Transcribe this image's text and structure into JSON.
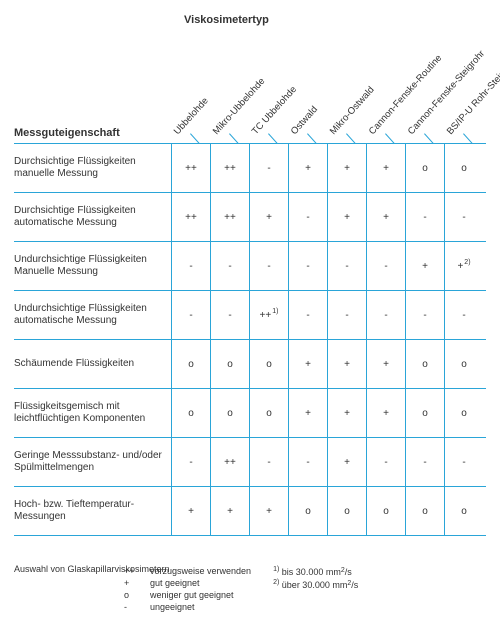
{
  "title": "Viskosimetertyp",
  "rowHeaderTitle": "Messguteigenschaft",
  "columns": [
    "Ubbelohde",
    "Mikro-Ubbelohde",
    "TC Ubbelohde",
    "Ostwald",
    "Mikro-Ostwald",
    "Cannon-Fenske-Routine",
    "Cannon-Fenske-Steigrohr",
    "BS/IP-U Rohr-Steigrohr"
  ],
  "rows": [
    {
      "label": "Durchsichtige Flüssigkeiten manuelle Messung",
      "cells": [
        "++",
        "++",
        "-",
        "+",
        "+",
        "+",
        "o",
        "o"
      ]
    },
    {
      "label": "Durchsichtige Flüssigkeiten automatische Messung",
      "cells": [
        "++",
        "++",
        "+",
        "-",
        "+",
        "+",
        "-",
        "-"
      ]
    },
    {
      "label": "Undurchsichtige Flüssigkeiten Manuelle Messung",
      "cells": [
        "-",
        "-",
        "-",
        "-",
        "-",
        "-",
        "+",
        {
          "v": "+",
          "sup": "2)"
        }
      ]
    },
    {
      "label": "Undurchsichtige Flüssigkeiten automatische Messung",
      "cells": [
        "-",
        "-",
        {
          "v": "++",
          "sup": "1)"
        },
        "-",
        "-",
        "-",
        "-",
        "-"
      ]
    },
    {
      "label": "Schäumende Flüssigkeiten",
      "cells": [
        "o",
        "o",
        "o",
        "+",
        "+",
        "+",
        "o",
        "o"
      ]
    },
    {
      "label": "Flüssigkeitsgemisch mit leichtflüchtigen Komponenten",
      "cells": [
        "o",
        "o",
        "o",
        "+",
        "+",
        "+",
        "o",
        "o"
      ]
    },
    {
      "label": "Geringe Messsubstanz- und/oder Spülmittelmengen",
      "cells": [
        "-",
        "++",
        "-",
        "-",
        "+",
        "-",
        "-",
        "-"
      ]
    },
    {
      "label": "Hoch- bzw. Tieftemperatur-Messungen",
      "cells": [
        "+",
        "+",
        "+",
        "o",
        "o",
        "o",
        "o",
        "o"
      ]
    }
  ],
  "footerTitle": "Auswahl von Glaskapillarviskosimetern",
  "legend": [
    {
      "sym": "++",
      "text": "vorzugsweise verwenden"
    },
    {
      "sym": "+",
      "text": "gut geeignet"
    },
    {
      "sym": "o",
      "text": "weniger gut geeignet"
    },
    {
      "sym": "-",
      "text": "ungeeignet"
    }
  ],
  "notes": [
    {
      "sup": "1)",
      "text": "bis 30.000 mm",
      "unitSup": "2",
      "unitSuffix": "/s"
    },
    {
      "sup": "2)",
      "text": "über 30.000 mm",
      "unitSup": "2",
      "unitSuffix": "/s"
    }
  ],
  "style": {
    "lineColor": "#2aa5d8",
    "cellWidth": 39,
    "labelWidth": 157,
    "diagLineHeight": 14
  }
}
